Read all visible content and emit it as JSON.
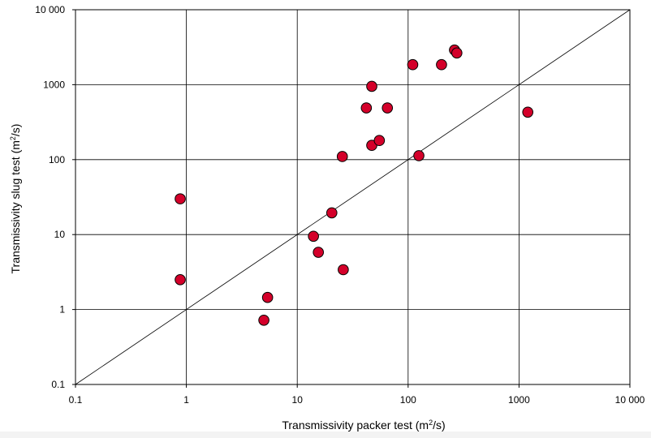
{
  "chart_data": {
    "type": "scatter",
    "title": "",
    "xlabel_main": "Transmissivity packer test (m",
    "xlabel_sup": "2",
    "xlabel_end": "/s)",
    "ylabel_main": "Transmissivity slug test (m",
    "ylabel_sup": "2",
    "ylabel_end": "/s)",
    "x_scale": "log",
    "y_scale": "log",
    "xlim": [
      0.1,
      10000
    ],
    "ylim": [
      0.1,
      10000
    ],
    "grid": true,
    "reference_line": "1:1 diagonal",
    "marker_color": "#d4002a",
    "x_ticks": [
      {
        "value": 0.1,
        "label": "0.1"
      },
      {
        "value": 1,
        "label": "1"
      },
      {
        "value": 10,
        "label": "10"
      },
      {
        "value": 100,
        "label": "100"
      },
      {
        "value": 1000,
        "label": "1000"
      },
      {
        "value": 10000,
        "label": "10 000"
      }
    ],
    "y_ticks": [
      {
        "value": 0.1,
        "label": "0.1"
      },
      {
        "value": 1,
        "label": "1"
      },
      {
        "value": 10,
        "label": "10"
      },
      {
        "value": 100,
        "label": "100"
      },
      {
        "value": 1000,
        "label": "1000"
      },
      {
        "value": 10000,
        "label": "10 000"
      }
    ],
    "points": [
      {
        "x": 0.88,
        "y": 30
      },
      {
        "x": 0.88,
        "y": 2.5
      },
      {
        "x": 5.0,
        "y": 0.72
      },
      {
        "x": 5.4,
        "y": 1.45
      },
      {
        "x": 14.0,
        "y": 9.5
      },
      {
        "x": 15.5,
        "y": 5.8
      },
      {
        "x": 20.5,
        "y": 19.5
      },
      {
        "x": 25.5,
        "y": 110
      },
      {
        "x": 26.0,
        "y": 3.4
      },
      {
        "x": 42.0,
        "y": 490
      },
      {
        "x": 47.0,
        "y": 950
      },
      {
        "x": 47.0,
        "y": 155
      },
      {
        "x": 55.0,
        "y": 180
      },
      {
        "x": 65.0,
        "y": 490
      },
      {
        "x": 110.0,
        "y": 1850
      },
      {
        "x": 125.0,
        "y": 113
      },
      {
        "x": 200.0,
        "y": 1850
      },
      {
        "x": 262.0,
        "y": 2900
      },
      {
        "x": 275.0,
        "y": 2650
      },
      {
        "x": 1200.0,
        "y": 430
      }
    ]
  }
}
